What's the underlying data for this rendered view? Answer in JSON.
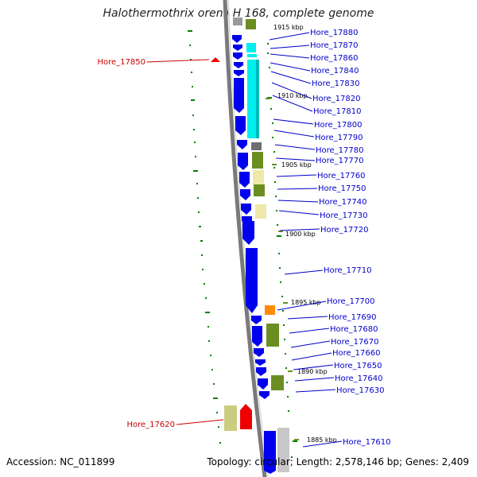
{
  "title": "Halothermothrix orenii H 168, complete genome",
  "footer": {
    "accession": "Accession: NC_011899",
    "summary": "Topology: circular; Length: 2,578,146 bp; Genes: 2,409"
  },
  "colors": {
    "forward_gene": "#0000ee",
    "highlight_gene": "#ee0000",
    "label_blue": "#0000cc",
    "label_red": "#cc0000",
    "cyan_feature": "#00eeee",
    "olive_feature": "#6b8e23",
    "khaki_feature": "#eee8aa",
    "orange_feature": "#ff8c00",
    "gray_feature": "#808080",
    "backbone": "#808080",
    "gc_marks": "#008000"
  },
  "scale_ticks": [
    "1915 kbp",
    "1910 kbp",
    "1905 kbp",
    "1900 kbp",
    "1895 kbp",
    "1890 kbp",
    "1885 kbp"
  ],
  "genes_right": [
    "Hore_17880",
    "Hore_17870",
    "Hore_17860",
    "Hore_17840",
    "Hore_17830",
    "Hore_17820",
    "Hore_17810",
    "Hore_17800",
    "Hore_17790",
    "Hore_17780",
    "Hore_17770",
    "Hore_17760",
    "Hore_17750",
    "Hore_17740",
    "Hore_17730",
    "Hore_17720",
    "Hore_17710",
    "Hore_17700",
    "Hore_17690",
    "Hore_17680",
    "Hore_17670",
    "Hore_17660",
    "Hore_17650",
    "Hore_17640",
    "Hore_17630",
    "Hore_17610"
  ],
  "genes_left": [
    "Hore_17850",
    "Hore_17620"
  ]
}
